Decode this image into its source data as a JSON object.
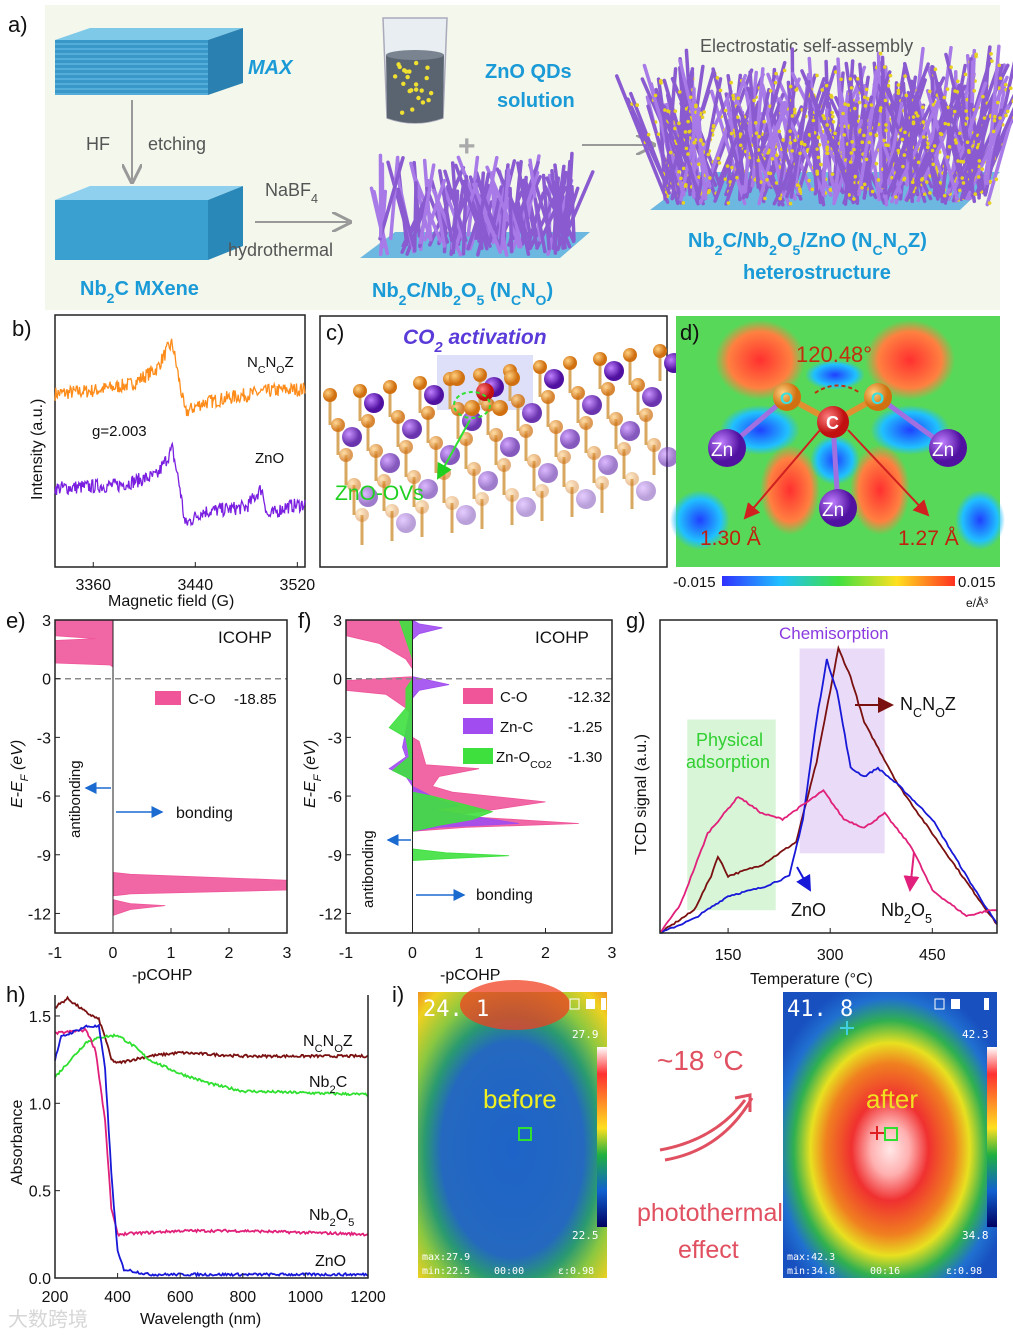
{
  "panel_labels": {
    "a": "a)",
    "b": "b)",
    "c": "c)",
    "d": "d)",
    "e": "e)",
    "f": "f)",
    "g": "g)",
    "h": "h)",
    "i": "i)"
  },
  "panel_a": {
    "max": "MAX",
    "hf": "HF",
    "etching": "etching",
    "mxene": "Nb_{2}C MXene",
    "nabf4": "NaBF_{4}",
    "hydrothermal": "hydrothermal",
    "qds_line1": "ZnO QDs",
    "qds_line2": "solution",
    "plus": "+",
    "ncno": "Nb_{2}C/Nb_{2}O_{5} (N_{C}N_{O})",
    "assembly": "Electrostatic self-assembly",
    "ncnoz": "Nb_{2}C/Nb_{2}O_{5}/ZnO (N_{C}N_{O}Z)",
    "hetero": "heterostructure"
  },
  "panel_c": {
    "title": "CO_{2} activation",
    "ovs": "ZnO-OVs"
  },
  "panel_d": {
    "angle": "120.48°",
    "bond_left": "1.30 Å",
    "bond_right": "1.27 Å",
    "zn": "Zn",
    "o": "O",
    "c": "C",
    "cbar_min": "-0.015",
    "cbar_max": "0.015",
    "cbar_unit": "e/Å³"
  },
  "panel_i": {
    "before": {
      "reading": "24. 1",
      "label": "before",
      "max_scale": "27.9",
      "min_scale": "22.5",
      "max_text": "max:27.9",
      "min_text": "min:22.5",
      "time": "00:00",
      "emiss": "ε:0.98"
    },
    "after": {
      "reading": "41. 8",
      "label": "after",
      "max_scale": "42.3",
      "min_scale": "34.8",
      "max_text": "max:42.3",
      "min_text": "min:34.8",
      "time": "00:16",
      "emiss": "ε:0.98"
    },
    "delta": "~18 °C",
    "effect_line1": "photothermal",
    "effect_line2": "effect"
  },
  "watermark": "大数跨境",
  "colors": {
    "orange": "#ff8c1a",
    "purple": "#7a1fe0",
    "pink": "#f0559a",
    "violet": "#a04cf0",
    "green": "#3ee03e",
    "brown": "#7a1010",
    "blue": "#1818d8",
    "magenta": "#e0207a",
    "lime": "#30e030",
    "accent": "#1a9ad6"
  },
  "chart_data": [
    {
      "id": "b",
      "type": "line",
      "xlabel": "Magnetic field (G)",
      "ylabel": "Intensity (a.u.)",
      "xlim": [
        3330,
        3526
      ],
      "ylim": [
        -0.6,
        1.0
      ],
      "xticks": [
        3360,
        3440,
        3520
      ],
      "annotation": "g=2.003",
      "series": [
        {
          "name": "N_{C}N_{O}Z",
          "color": "#ff8c1a",
          "points": [
            [
              3330,
              0.5
            ],
            [
              3360,
              0.52
            ],
            [
              3390,
              0.56
            ],
            [
              3410,
              0.66
            ],
            [
              3418,
              0.78
            ],
            [
              3422,
              0.82
            ],
            [
              3427,
              0.6
            ],
            [
              3432,
              0.38
            ],
            [
              3445,
              0.44
            ],
            [
              3470,
              0.48
            ],
            [
              3500,
              0.52
            ],
            [
              3526,
              0.53
            ]
          ]
        },
        {
          "name": "ZnO",
          "color": "#7a1fe0",
          "points": [
            [
              3330,
              -0.1
            ],
            [
              3380,
              -0.08
            ],
            [
              3410,
              -0.02
            ],
            [
              3422,
              0.15
            ],
            [
              3428,
              -0.1
            ],
            [
              3432,
              -0.33
            ],
            [
              3445,
              -0.25
            ],
            [
              3480,
              -0.22
            ],
            [
              3492,
              -0.1
            ],
            [
              3497,
              -0.28
            ],
            [
              3510,
              -0.22
            ],
            [
              3526,
              -0.2
            ]
          ]
        }
      ]
    },
    {
      "id": "e",
      "type": "area",
      "title": "ICOHP",
      "xlabel": "-pCOHP",
      "ylabel": "E-E_{F} (eV)",
      "xlim": [
        -1,
        3
      ],
      "ylim": [
        -13,
        3
      ],
      "xticks": [
        -1,
        0,
        1,
        2,
        3
      ],
      "yticks": [
        3,
        0,
        -3,
        -6,
        -9,
        -12
      ],
      "antibonding": "antibonding",
      "bonding": "bonding",
      "series": [
        {
          "name": "C-O",
          "value": "-18.85",
          "color": "#f0559a",
          "points": [
            [
              0,
              3
            ],
            [
              -1,
              3
            ],
            [
              -1,
              2.2
            ],
            [
              -0.3,
              2.05
            ],
            [
              -1,
              1.95
            ],
            [
              -1,
              0.8
            ],
            [
              -0.05,
              0.7
            ],
            [
              0,
              0.6
            ],
            [
              0,
              -9.9
            ],
            [
              0.3,
              -10
            ],
            [
              3,
              -10.3
            ],
            [
              3,
              -10.8
            ],
            [
              0.3,
              -11
            ],
            [
              0,
              -11.1
            ],
            [
              0,
              -11.3
            ],
            [
              0.3,
              -11.5
            ],
            [
              0.9,
              -11.6
            ],
            [
              0.3,
              -11.8
            ],
            [
              0,
              -12.1
            ],
            [
              0,
              3
            ]
          ]
        }
      ]
    },
    {
      "id": "f",
      "type": "area",
      "title": "ICOHP",
      "xlabel": "-pCOHP",
      "ylabel": "E-E_{F} (eV)",
      "xlim": [
        -1,
        3
      ],
      "ylim": [
        -13,
        3
      ],
      "xticks": [
        -1,
        0,
        1,
        2,
        3
      ],
      "yticks": [
        3,
        0,
        -3,
        -6,
        -9,
        -12
      ],
      "antibonding": "antibonding",
      "bonding": "bonding",
      "series": [
        {
          "name": "C-O",
          "value": "-12.32",
          "color": "#f0559a",
          "points": [
            [
              0,
              3
            ],
            [
              -1,
              3
            ],
            [
              -1,
              2.2
            ],
            [
              -0.5,
              1.8
            ],
            [
              -0.1,
              1
            ],
            [
              0,
              0.5
            ],
            [
              0,
              0.1
            ],
            [
              -1,
              -0.1
            ],
            [
              -1,
              -0.6
            ],
            [
              -0.4,
              -0.8
            ],
            [
              -0.1,
              -1.5
            ],
            [
              0,
              -2
            ],
            [
              0,
              -3
            ],
            [
              0.1,
              -3.2
            ],
            [
              0.2,
              -4.4
            ],
            [
              1,
              -4.6
            ],
            [
              0.4,
              -5
            ],
            [
              0.3,
              -5.5
            ],
            [
              0.6,
              -5.8
            ],
            [
              2,
              -6.3
            ],
            [
              1.2,
              -6.7
            ],
            [
              0.6,
              -7
            ],
            [
              2.5,
              -7.4
            ],
            [
              0.8,
              -7.6
            ],
            [
              0,
              -7.8
            ]
          ]
        },
        {
          "name": "Zn-C",
          "value": "-1.25",
          "color": "#a04cf0",
          "points": [
            [
              0,
              3
            ],
            [
              0.1,
              2.8
            ],
            [
              0.45,
              2.6
            ],
            [
              0.1,
              2.3
            ],
            [
              0,
              2
            ],
            [
              0,
              0.1
            ],
            [
              0.55,
              -0.3
            ],
            [
              0.1,
              -0.6
            ],
            [
              0,
              -1
            ],
            [
              -0.15,
              -3.5
            ],
            [
              -0.1,
              -4
            ],
            [
              -0.35,
              -4.6
            ],
            [
              -0.1,
              -5
            ],
            [
              0,
              -5.5
            ],
            [
              0.4,
              -6.2
            ],
            [
              0.7,
              -6.5
            ],
            [
              0.3,
              -6.7
            ],
            [
              1.6,
              -7.4
            ],
            [
              0.4,
              -7.6
            ],
            [
              0,
              -7.8
            ]
          ]
        },
        {
          "name": "Zn-O_{CO2}",
          "value": "-1.30",
          "color": "#3ee03e",
          "points": [
            [
              0,
              3
            ],
            [
              -0.2,
              3
            ],
            [
              -0.1,
              2
            ],
            [
              0,
              1
            ],
            [
              0,
              0
            ],
            [
              -0.1,
              -0.5
            ],
            [
              -0.1,
              -1.5
            ],
            [
              -0.35,
              -2.5
            ],
            [
              -0.1,
              -3
            ],
            [
              -0.05,
              -4
            ],
            [
              -0.3,
              -4.7
            ],
            [
              0,
              -5.2
            ],
            [
              0,
              -5.8
            ],
            [
              0.3,
              -6
            ],
            [
              1.2,
              -6.8
            ],
            [
              0.9,
              -7.2
            ],
            [
              0.4,
              -7.5
            ],
            [
              0,
              -7.8
            ],
            [
              0,
              -8.7
            ],
            [
              0.5,
              -8.9
            ],
            [
              1.45,
              -9.05
            ],
            [
              0.5,
              -9.2
            ],
            [
              0,
              -9.3
            ]
          ]
        }
      ]
    },
    {
      "id": "g",
      "type": "line",
      "xlabel": "Temperature (°C)",
      "ylabel": "TCD signal (a.u.)",
      "xlim": [
        50,
        545
      ],
      "ylim": [
        0,
        110
      ],
      "xticks": [
        150,
        300,
        450
      ],
      "regions": [
        {
          "name": "Physical adsorption",
          "line1": "Physical",
          "line2": "adsorption",
          "range": [
            90,
            220
          ],
          "yrange": [
            8,
            75
          ],
          "color": "#d8f5d8"
        },
        {
          "name": "Chemisorption",
          "range": [
            255,
            380
          ],
          "yrange": [
            28,
            100
          ],
          "color": "#eadcf8"
        }
      ],
      "series": [
        {
          "name": "N_{C}N_{O}Z",
          "color": "#7a1010",
          "points": [
            [
              50,
              0
            ],
            [
              100,
              8
            ],
            [
              125,
              20
            ],
            [
              135,
              27
            ],
            [
              150,
              20
            ],
            [
              200,
              24
            ],
            [
              250,
              32
            ],
            [
              280,
              60
            ],
            [
              300,
              85
            ],
            [
              312,
              100
            ],
            [
              330,
              90
            ],
            [
              350,
              74
            ],
            [
              400,
              52
            ],
            [
              450,
              35
            ],
            [
              500,
              18
            ],
            [
              545,
              3
            ]
          ]
        },
        {
          "name": "ZnO",
          "color": "#1818d8",
          "points": [
            [
              50,
              0
            ],
            [
              100,
              5
            ],
            [
              150,
              13
            ],
            [
              200,
              16
            ],
            [
              240,
              20
            ],
            [
              260,
              40
            ],
            [
              280,
              75
            ],
            [
              295,
              96
            ],
            [
              310,
              85
            ],
            [
              330,
              58
            ],
            [
              350,
              55
            ],
            [
              370,
              58
            ],
            [
              400,
              52
            ],
            [
              450,
              40
            ],
            [
              500,
              20
            ],
            [
              545,
              3
            ]
          ]
        },
        {
          "name": "Nb_{2}O_{5}",
          "color": "#e0207a",
          "points": [
            [
              50,
              0
            ],
            [
              80,
              10
            ],
            [
              120,
              35
            ],
            [
              165,
              48
            ],
            [
              200,
              42
            ],
            [
              230,
              40
            ],
            [
              260,
              45
            ],
            [
              290,
              50
            ],
            [
              320,
              40
            ],
            [
              350,
              37
            ],
            [
              380,
              42
            ],
            [
              420,
              30
            ],
            [
              450,
              15
            ],
            [
              500,
              6
            ],
            [
              535,
              8
            ],
            [
              545,
              8
            ]
          ]
        }
      ]
    },
    {
      "id": "h",
      "type": "line",
      "xlabel": "Wavelength (nm)",
      "ylabel": "Absorbance",
      "xlim": [
        200,
        1200
      ],
      "ylim": [
        0,
        1.62
      ],
      "xticks": [
        200,
        400,
        600,
        800,
        1000,
        1200
      ],
      "yticks": [
        0.0,
        0.5,
        1.0,
        1.5
      ],
      "series": [
        {
          "name": "N_{C}N_{O}Z",
          "color": "#7a1010",
          "points": [
            [
              200,
              1.55
            ],
            [
              240,
              1.6
            ],
            [
              300,
              1.52
            ],
            [
              340,
              1.48
            ],
            [
              360,
              1.38
            ],
            [
              380,
              1.25
            ],
            [
              400,
              1.23
            ],
            [
              500,
              1.27
            ],
            [
              600,
              1.29
            ],
            [
              800,
              1.27
            ],
            [
              1200,
              1.27
            ]
          ]
        },
        {
          "name": "Nb_{2}C",
          "color": "#30e030",
          "points": [
            [
              200,
              1.15
            ],
            [
              300,
              1.35
            ],
            [
              350,
              1.38
            ],
            [
              400,
              1.39
            ],
            [
              450,
              1.33
            ],
            [
              500,
              1.25
            ],
            [
              600,
              1.17
            ],
            [
              700,
              1.11
            ],
            [
              800,
              1.07
            ],
            [
              1200,
              1.05
            ]
          ]
        },
        {
          "name": "Nb_{2}O_{5}",
          "color": "#e0207a",
          "points": [
            [
              200,
              1.4
            ],
            [
              300,
              1.42
            ],
            [
              330,
              1.3
            ],
            [
              360,
              0.9
            ],
            [
              380,
              0.4
            ],
            [
              400,
              0.25
            ],
            [
              600,
              0.27
            ],
            [
              800,
              0.27
            ],
            [
              1200,
              0.25
            ]
          ]
        },
        {
          "name": "ZnO",
          "color": "#1818d8",
          "points": [
            [
              200,
              1.25
            ],
            [
              220,
              1.38
            ],
            [
              300,
              1.44
            ],
            [
              340,
              1.44
            ],
            [
              360,
              1.2
            ],
            [
              380,
              0.6
            ],
            [
              400,
              0.15
            ],
            [
              420,
              0.05
            ],
            [
              500,
              0.02
            ],
            [
              1200,
              0.02
            ]
          ]
        }
      ]
    }
  ]
}
